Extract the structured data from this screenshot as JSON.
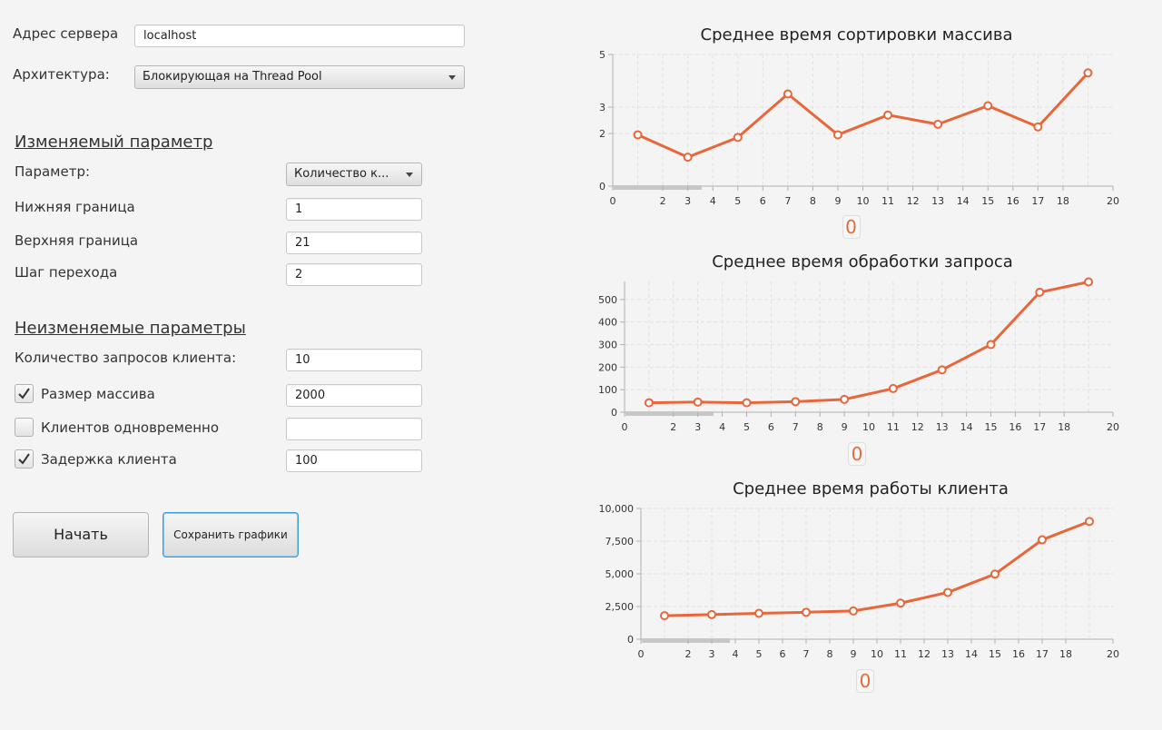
{
  "form": {
    "server_label": "Адрес сервера",
    "server_value": "localhost",
    "arch_label": "Архитектура:",
    "arch_value": "Блокирующая на Thread Pool"
  },
  "variable_section": {
    "title": "Изменяемый параметр",
    "param_label": "Параметр:",
    "param_value": "Количество к...",
    "lower_label": "Нижняя граница",
    "lower_value": "1",
    "upper_label": "Верхняя граница",
    "upper_value": "21",
    "step_label": "Шаг перехода",
    "step_value": "2"
  },
  "fixed_section": {
    "title": "Неизменяемые параметры",
    "requests_label": "Количество запросов клиента:",
    "requests_value": "10",
    "array_size_label": "Размер массива",
    "array_size_value": "2000",
    "array_size_checked": true,
    "clients_label": "Клиентов одновременно",
    "clients_value": "",
    "clients_checked": false,
    "delay_label": "Задержка клиента",
    "delay_value": "100",
    "delay_checked": true
  },
  "buttons": {
    "start": "Начать",
    "save": "Сохранить графики"
  },
  "colors": {
    "series": "#e8673a",
    "grid": "#e2e2e2",
    "axis": "#b0b0b0"
  },
  "chart_data": [
    {
      "type": "line",
      "title": "Среднее время сортировки массива",
      "xlim": [
        0,
        20
      ],
      "ylim": [
        0,
        5
      ],
      "x_ticks": [
        "0",
        "2",
        "3",
        "4",
        "5",
        "6",
        "7",
        "8",
        "9",
        "10",
        "11",
        "12",
        "13",
        "14",
        "15",
        "16",
        "17",
        "18",
        "20"
      ],
      "y_ticks": [
        "0",
        "2",
        "3",
        "5"
      ],
      "x_tick_values": [
        0,
        2,
        3,
        4,
        5,
        6,
        7,
        8,
        9,
        10,
        11,
        12,
        13,
        14,
        15,
        16,
        17,
        18,
        20
      ],
      "y_tick_values": [
        0,
        2,
        3,
        5
      ],
      "x": [
        1,
        3,
        5,
        7,
        9,
        11,
        13,
        15,
        17,
        19
      ],
      "values": [
        1.95,
        1.1,
        1.85,
        3.5,
        1.95,
        2.7,
        2.35,
        3.05,
        2.25,
        4.3
      ],
      "legend": "0"
    },
    {
      "type": "line",
      "title": "Среднее время обработки запроса",
      "xlim": [
        0,
        20
      ],
      "ylim": [
        0,
        580
      ],
      "x_ticks": [
        "0",
        "2",
        "3",
        "4",
        "5",
        "6",
        "7",
        "8",
        "9",
        "10",
        "11",
        "12",
        "13",
        "14",
        "15",
        "16",
        "17",
        "18",
        "20"
      ],
      "y_ticks": [
        "0",
        "100",
        "200",
        "300",
        "400",
        "500"
      ],
      "x_tick_values": [
        0,
        2,
        3,
        4,
        5,
        6,
        7,
        8,
        9,
        10,
        11,
        12,
        13,
        14,
        15,
        16,
        17,
        18,
        20
      ],
      "y_tick_values": [
        0,
        100,
        200,
        300,
        400,
        500
      ],
      "x": [
        1,
        3,
        5,
        7,
        9,
        11,
        13,
        15,
        17,
        19
      ],
      "values": [
        42,
        45,
        42,
        47,
        57,
        105,
        188,
        300,
        532,
        578
      ],
      "legend": "0"
    },
    {
      "type": "line",
      "title": "Среднее время работы клиента",
      "xlim": [
        0,
        20
      ],
      "ylim": [
        0,
        10000
      ],
      "x_ticks": [
        "0",
        "2",
        "3",
        "4",
        "5",
        "6",
        "7",
        "8",
        "9",
        "10",
        "11",
        "12",
        "13",
        "14",
        "15",
        "16",
        "17",
        "18",
        "20"
      ],
      "y_ticks": [
        "0",
        "2,500",
        "5,000",
        "7,500",
        "10,000"
      ],
      "x_tick_values": [
        0,
        2,
        3,
        4,
        5,
        6,
        7,
        8,
        9,
        10,
        11,
        12,
        13,
        14,
        15,
        16,
        17,
        18,
        20
      ],
      "y_tick_values": [
        0,
        2500,
        5000,
        7500,
        10000
      ],
      "x": [
        1,
        3,
        5,
        7,
        9,
        11,
        13,
        15,
        17,
        19
      ],
      "values": [
        1800,
        1880,
        1980,
        2060,
        2160,
        2760,
        3580,
        4980,
        7600,
        9000
      ],
      "legend": "0"
    }
  ]
}
